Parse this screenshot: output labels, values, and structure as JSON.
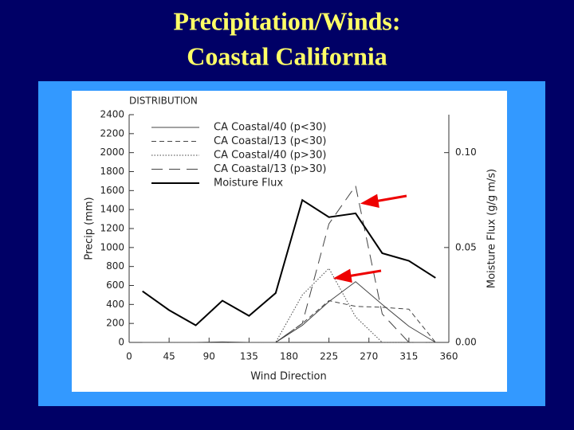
{
  "slide": {
    "title_lines": [
      "Precipitation/Winds:",
      "Coastal California"
    ]
  },
  "chart_data": {
    "type": "line",
    "title": "DISTRIBUTION",
    "x_label": "Wind Direction",
    "y_label": "Precip (mm)",
    "y2_label": "Moisture Flux (g/g m/s)",
    "x": [
      15,
      45,
      75,
      105,
      135,
      165,
      195,
      225,
      255,
      285,
      315,
      345
    ],
    "xlim": [
      0,
      360
    ],
    "xticks": [
      0,
      45,
      90,
      135,
      180,
      225,
      270,
      315,
      360
    ],
    "ylim": [
      0,
      2400
    ],
    "yticks": [
      0,
      200,
      400,
      600,
      800,
      1000,
      1200,
      1400,
      1600,
      1800,
      2000,
      2200,
      2400
    ],
    "y2lim": [
      0,
      0.12
    ],
    "y2ticks": [
      {
        "value": 0,
        "label": "0.00"
      },
      {
        "value": 0.05,
        "label": "0.05"
      },
      {
        "value": 0.1,
        "label": "0.10"
      }
    ],
    "legend": "top-left",
    "series": [
      {
        "name": "CA Coastal/40 (p<30)",
        "color": "#444444",
        "style": "solid",
        "width": 1,
        "values": [
          0,
          0,
          0,
          5,
          0,
          0,
          180,
          430,
          640,
          400,
          170,
          0
        ]
      },
      {
        "name": "CA Coastal/13 (p<30)",
        "color": "#444444",
        "style": "dashed",
        "width": 1,
        "values": [
          0,
          0,
          0,
          0,
          0,
          0,
          200,
          440,
          380,
          370,
          350,
          0
        ]
      },
      {
        "name": "CA Coastal/40 (p>30)",
        "color": "#444444",
        "style": "dotted",
        "width": 1,
        "values": [
          0,
          0,
          0,
          0,
          0,
          0,
          500,
          780,
          270,
          0,
          0,
          0
        ]
      },
      {
        "name": "CA Coastal/13 (p>30)",
        "color": "#444444",
        "style": "longdash",
        "width": 1,
        "values": [
          0,
          0,
          0,
          0,
          0,
          0,
          200,
          1250,
          1650,
          300,
          0,
          0
        ]
      },
      {
        "name": "Moisture Flux",
        "color": "#000000",
        "style": "solid",
        "width": 2,
        "axis": "y2",
        "values": [
          0.027,
          0.017,
          0.009,
          0.022,
          0.014,
          0.026,
          0.075,
          0.066,
          0.068,
          0.047,
          0.043,
          0.034
        ]
      }
    ]
  }
}
